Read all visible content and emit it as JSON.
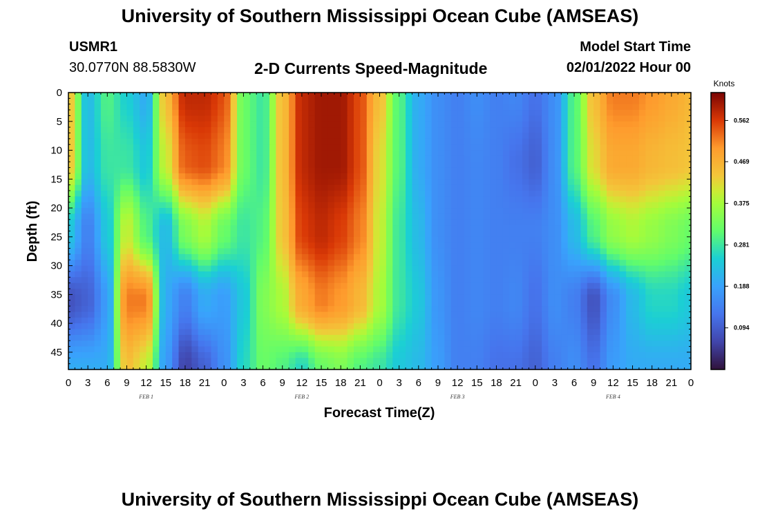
{
  "page": {
    "title": "University of Southern Mississippi Ocean Cube (AMSEAS)",
    "title_repeat": "University of Southern Mississippi Ocean Cube (AMSEAS)",
    "station_id": "USMR1",
    "station_coords": "30.0770N  88.5830W",
    "subtitle": "2-D Currents Speed-Magnitude",
    "model_start_label": "Model Start Time",
    "model_start_value": "02/01/2022 Hour 00"
  },
  "chart_data": {
    "type": "heatmap",
    "title": "2-D Currents Speed-Magnitude",
    "xlabel": "Forecast Time(Z)",
    "ylabel": "Depth (ft)",
    "x_range_hours": [
      0,
      96
    ],
    "y_range_ft": [
      0,
      48
    ],
    "y_inverted": true,
    "x_tick_hours": [
      0,
      3,
      6,
      9,
      12,
      15,
      18,
      21,
      24,
      27,
      30,
      33,
      36,
      39,
      42,
      45,
      48,
      51,
      54,
      57,
      60,
      63,
      66,
      69,
      72,
      75,
      78,
      81,
      84,
      87,
      90,
      93,
      96
    ],
    "x_tick_labels": [
      "0",
      "3",
      "6",
      "9",
      "12",
      "15",
      "18",
      "21",
      "0",
      "3",
      "6",
      "9",
      "12",
      "15",
      "18",
      "21",
      "0",
      "3",
      "6",
      "9",
      "12",
      "15",
      "18",
      "21",
      "0",
      "3",
      "6",
      "9",
      "12",
      "15",
      "18",
      "21",
      "0"
    ],
    "day_labels": [
      {
        "text": "FEB 1",
        "hour": 12
      },
      {
        "text": "FEB 2",
        "hour": 36
      },
      {
        "text": "FEB 3",
        "hour": 60
      },
      {
        "text": "FEB 4",
        "hour": 84
      }
    ],
    "y_ticks": [
      0,
      5,
      10,
      15,
      20,
      25,
      30,
      35,
      40,
      45
    ],
    "colorbar": {
      "unit": "Knots",
      "min": 0.0,
      "max": 0.625,
      "ticks": [
        0.094,
        0.188,
        0.281,
        0.375,
        0.469,
        0.562
      ],
      "tick_labels": [
        "0.094",
        "0.188",
        "0.281",
        "0.375",
        "0.469",
        "0.562"
      ]
    },
    "grid_depths_ft": [
      0,
      12,
      24,
      36,
      48
    ],
    "grid_hours": [
      0,
      3,
      6,
      9,
      12,
      15,
      18,
      21,
      24,
      27,
      30,
      33,
      36,
      39,
      42,
      45,
      48,
      51,
      54,
      57,
      60,
      63,
      66,
      69,
      72,
      75,
      78,
      81,
      84,
      87,
      90,
      93,
      96
    ],
    "speed_knots": [
      [
        0.45,
        0.22,
        0.3,
        0.25,
        0.2,
        0.45,
        0.58,
        0.58,
        0.55,
        0.32,
        0.28,
        0.45,
        0.58,
        0.6,
        0.6,
        0.55,
        0.45,
        0.3,
        0.2,
        0.16,
        0.14,
        0.16,
        0.14,
        0.15,
        0.12,
        0.16,
        0.3,
        0.45,
        0.52,
        0.52,
        0.5,
        0.48,
        0.46
      ],
      [
        0.45,
        0.22,
        0.28,
        0.28,
        0.24,
        0.4,
        0.54,
        0.55,
        0.52,
        0.32,
        0.28,
        0.45,
        0.58,
        0.6,
        0.6,
        0.55,
        0.42,
        0.3,
        0.2,
        0.16,
        0.14,
        0.15,
        0.14,
        0.12,
        0.1,
        0.16,
        0.3,
        0.42,
        0.48,
        0.48,
        0.46,
        0.45,
        0.44
      ],
      [
        0.24,
        0.14,
        0.24,
        0.4,
        0.3,
        0.22,
        0.34,
        0.38,
        0.32,
        0.28,
        0.3,
        0.44,
        0.56,
        0.58,
        0.56,
        0.52,
        0.4,
        0.28,
        0.22,
        0.16,
        0.14,
        0.15,
        0.14,
        0.14,
        0.14,
        0.16,
        0.22,
        0.3,
        0.36,
        0.38,
        0.36,
        0.34,
        0.32
      ],
      [
        0.08,
        0.1,
        0.18,
        0.52,
        0.52,
        0.2,
        0.14,
        0.2,
        0.18,
        0.24,
        0.34,
        0.38,
        0.48,
        0.52,
        0.5,
        0.46,
        0.38,
        0.28,
        0.24,
        0.17,
        0.14,
        0.15,
        0.14,
        0.15,
        0.12,
        0.16,
        0.14,
        0.08,
        0.16,
        0.22,
        0.26,
        0.26,
        0.24
      ],
      [
        0.2,
        0.2,
        0.2,
        0.45,
        0.4,
        0.18,
        0.06,
        0.1,
        0.16,
        0.26,
        0.32,
        0.3,
        0.26,
        0.32,
        0.34,
        0.3,
        0.28,
        0.24,
        0.22,
        0.18,
        0.14,
        0.14,
        0.12,
        0.12,
        0.1,
        0.14,
        0.16,
        0.12,
        0.18,
        0.2,
        0.2,
        0.2,
        0.2
      ]
    ]
  }
}
